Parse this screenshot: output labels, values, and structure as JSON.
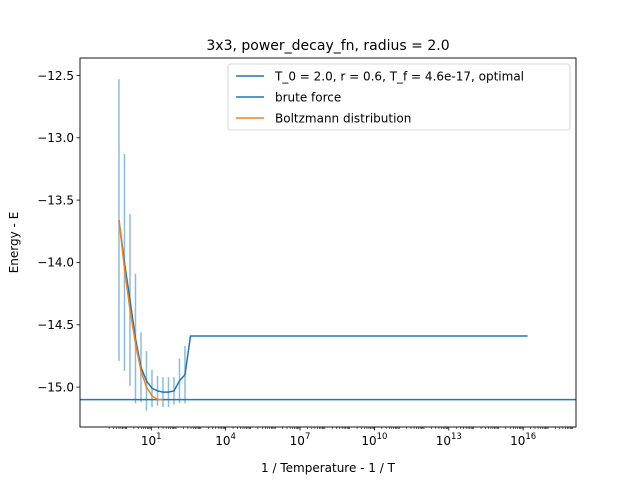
{
  "chart_data": {
    "type": "line",
    "title": "3x3, power_decay_fn, radius = 2.0",
    "xlabel": "1 / Temperature - 1 / T",
    "ylabel": "Energy - E",
    "x_scale": "log",
    "xlim": [
      0.0134,
      1.35e+18
    ],
    "ylim": [
      -15.32,
      -12.36
    ],
    "x_ticks": [
      {
        "value": 10,
        "base": "10",
        "exp": "1"
      },
      {
        "value": 10000,
        "base": "10",
        "exp": "4"
      },
      {
        "value": 10000000,
        "base": "10",
        "exp": "7"
      },
      {
        "value": 10000000000,
        "base": "10",
        "exp": "10"
      },
      {
        "value": 10000000000000,
        "base": "10",
        "exp": "13"
      },
      {
        "value": 10000000000000000,
        "base": "10",
        "exp": "16"
      }
    ],
    "y_ticks": [
      {
        "value": -12.5,
        "label": "−12.5"
      },
      {
        "value": -13.0,
        "label": "−13.0"
      },
      {
        "value": -13.5,
        "label": "−13.5"
      },
      {
        "value": -14.0,
        "label": "−14.0"
      },
      {
        "value": -14.5,
        "label": "−14.5"
      },
      {
        "value": -15.0,
        "label": "−15.0"
      }
    ],
    "grid": false,
    "legend_position": "top-right",
    "series": [
      {
        "name": "T_0 = 2.0, r = 0.6, T_f = 4.6e-17, optimal",
        "kind": "line-with-errorbars",
        "color": "#1f77b4",
        "errorbar_color": "#8dbbdd",
        "x": [
          0.5,
          0.833,
          1.389,
          2.315,
          3.858,
          6.43,
          10.72,
          17.86,
          29.77,
          49.61,
          82.69,
          137.8,
          229.7,
          382.8,
          640,
          1.5e+16
        ],
        "y": [
          -13.66,
          -14.0,
          -14.3,
          -14.61,
          -14.84,
          -14.95,
          -15.01,
          -15.03,
          -15.04,
          -15.04,
          -15.03,
          -14.95,
          -14.9,
          -14.59,
          -14.59,
          -14.59
        ],
        "yerr": [
          1.13,
          0.87,
          0.69,
          0.52,
          0.28,
          0.24,
          0.15,
          0.12,
          0.12,
          0.12,
          0.11,
          0.18,
          0.23,
          0.0,
          0.0,
          0.0
        ]
      },
      {
        "name": "brute force",
        "kind": "hline",
        "color": "#1f77b4",
        "y": -15.1
      },
      {
        "name": "Boltzmann distribution",
        "kind": "line",
        "color": "#ff7f0e",
        "x": [
          0.5,
          0.833,
          1.389,
          2.315,
          3.858,
          6.43,
          10.72,
          17.86,
          29.77
        ],
        "y": [
          -13.66,
          -14.05,
          -14.38,
          -14.65,
          -14.87,
          -15.0,
          -15.07,
          -15.1,
          -15.1
        ]
      }
    ]
  }
}
